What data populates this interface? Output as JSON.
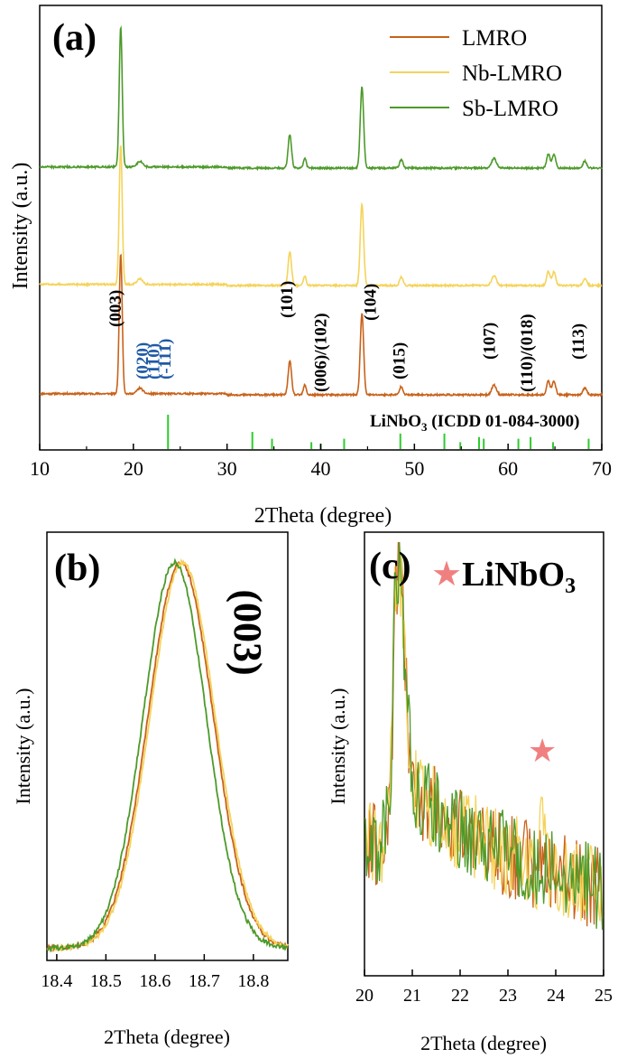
{
  "colors": {
    "lmro": "#c8621a",
    "nb": "#f5d35a",
    "sb": "#4c9a2a",
    "ref": "#2ecc2e",
    "star": "#f08080",
    "millerBlue": "#1f5aa6",
    "axis": "#000000"
  },
  "chart_data": [
    {
      "panel": "a",
      "type": "line",
      "panel_label": "(a)",
      "xlabel": "2Theta (degree)",
      "ylabel": "Intensity (a.u.)",
      "xlim": [
        10,
        70
      ],
      "xticks": [
        "10",
        "20",
        "30",
        "40",
        "50",
        "60",
        "70"
      ],
      "legend": {
        "position": "top-right",
        "entries": [
          "LMRO",
          "Nb-LMRO",
          "Sb-LMRO"
        ]
      },
      "series": [
        {
          "name": "LMRO",
          "color": "#c8621a",
          "offset": 0,
          "amp": 0.62
        },
        {
          "name": "Nb-LMRO",
          "color": "#f5d35a",
          "offset": 1,
          "amp": 0.62
        },
        {
          "name": "Sb-LMRO",
          "color": "#4c9a2a",
          "offset": 2,
          "amp": 0.62
        }
      ],
      "peaks": [
        {
          "x": 18.65,
          "h": 1.0,
          "w": 0.16
        },
        {
          "x": 20.7,
          "h": 0.04,
          "w": 0.3
        },
        {
          "x": 36.7,
          "h": 0.24,
          "w": 0.18
        },
        {
          "x": 38.3,
          "h": 0.07,
          "w": 0.15
        },
        {
          "x": 44.4,
          "h": 0.58,
          "w": 0.18
        },
        {
          "x": 48.6,
          "h": 0.06,
          "w": 0.18
        },
        {
          "x": 58.5,
          "h": 0.07,
          "w": 0.25
        },
        {
          "x": 64.3,
          "h": 0.1,
          "w": 0.18
        },
        {
          "x": 64.9,
          "h": 0.1,
          "w": 0.18
        },
        {
          "x": 68.2,
          "h": 0.05,
          "w": 0.2
        }
      ],
      "annotations": [
        {
          "x": 18.0,
          "text": "(003)",
          "color": "black"
        },
        {
          "x": 20.9,
          "text": "(020)",
          "color": "blue"
        },
        {
          "x": 22.1,
          "text": "(110)",
          "color": "blue"
        },
        {
          "x": 23.3,
          "text": "(-111)",
          "color": "blue"
        },
        {
          "x": 36.3,
          "text": "(101)",
          "color": "black"
        },
        {
          "x": 39.9,
          "text": "(006)/(102)",
          "color": "black"
        },
        {
          "x": 45.2,
          "text": "(104)",
          "color": "black"
        },
        {
          "x": 48.3,
          "text": "(015)",
          "color": "black"
        },
        {
          "x": 57.9,
          "text": "(107)",
          "color": "black"
        },
        {
          "x": 61.9,
          "text": "(110)/(018)",
          "color": "black"
        },
        {
          "x": 67.4,
          "text": "(113)",
          "color": "black"
        }
      ],
      "reference": {
        "label_main": "LiNbO",
        "label_sub": "3",
        "label_tail": " (ICDD 01-084-3000)",
        "sticks": [
          {
            "x": 23.7,
            "h": 1.0
          },
          {
            "x": 32.7,
            "h": 0.5
          },
          {
            "x": 34.8,
            "h": 0.3
          },
          {
            "x": 39.0,
            "h": 0.2
          },
          {
            "x": 40.0,
            "h": 0.15
          },
          {
            "x": 42.5,
            "h": 0.3
          },
          {
            "x": 48.5,
            "h": 0.45
          },
          {
            "x": 53.2,
            "h": 0.45
          },
          {
            "x": 54.9,
            "h": 0.2
          },
          {
            "x": 56.9,
            "h": 0.35
          },
          {
            "x": 57.4,
            "h": 0.3
          },
          {
            "x": 61.1,
            "h": 0.3
          },
          {
            "x": 62.4,
            "h": 0.35
          },
          {
            "x": 64.8,
            "h": 0.2
          },
          {
            "x": 68.6,
            "h": 0.3
          }
        ]
      }
    },
    {
      "panel": "b",
      "type": "line",
      "panel_label": "(b)",
      "xlabel": "2Theta (degree)",
      "ylabel": "Intensity (a.u.)",
      "xlim": [
        18.38,
        18.87
      ],
      "xticks": [
        "18.4",
        "18.5",
        "18.6",
        "18.7",
        "18.8"
      ],
      "annotation": "(003)",
      "series": [
        {
          "name": "LMRO",
          "color": "#c8621a",
          "center": 18.652,
          "sigma": 0.066
        },
        {
          "name": "Nb-LMRO",
          "color": "#f5d35a",
          "center": 18.656,
          "sigma": 0.066
        },
        {
          "name": "Sb-LMRO",
          "color": "#4c9a2a",
          "center": 18.64,
          "sigma": 0.064
        }
      ]
    },
    {
      "panel": "c",
      "type": "line",
      "panel_label": "(c)",
      "xlabel": "2Theta (degree)",
      "ylabel": "Intensity (a.u.)",
      "xlim": [
        20,
        25
      ],
      "xticks": [
        "20",
        "21",
        "22",
        "23",
        "24",
        "25"
      ],
      "legend_star": "★",
      "legend_main": "LiNbO",
      "legend_sub": "3",
      "star_x": 23.72,
      "series": [
        {
          "name": "LMRO",
          "color": "#c8621a",
          "seed": 7
        },
        {
          "name": "Nb-LMRO",
          "color": "#f5d35a",
          "seed": 13
        },
        {
          "name": "Sb-LMRO",
          "color": "#4c9a2a",
          "seed": 29
        }
      ]
    }
  ]
}
